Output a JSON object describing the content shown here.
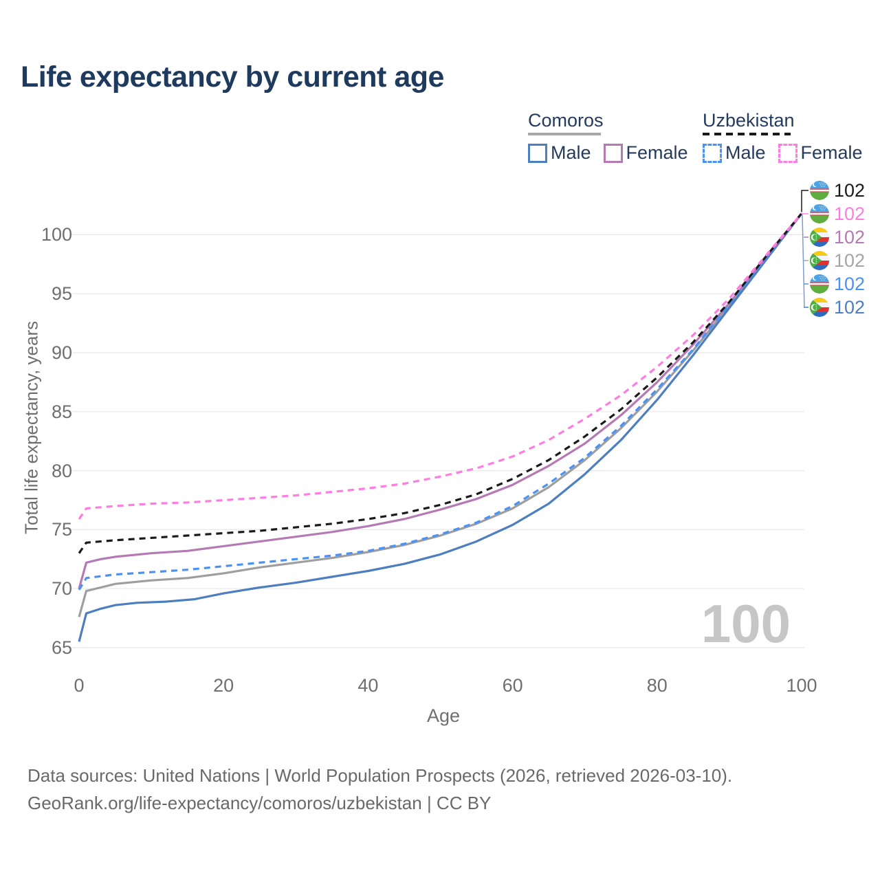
{
  "title": "Life expectancy by current age",
  "legend": {
    "groups": [
      {
        "label": "Comoros",
        "underline_style": "solid",
        "underline_color": "#a6a6a6",
        "underline_width": 106,
        "items": [
          {
            "label": "Male",
            "color": "#4d7ebf",
            "dash": false
          },
          {
            "label": "Female",
            "color": "#b579b3",
            "dash": false
          }
        ]
      },
      {
        "label": "Uzbekistan",
        "underline_style": "dashed",
        "underline_color": "#1a1a1a",
        "underline_width": 128,
        "items": [
          {
            "label": "Male",
            "color": "#4b92f5",
            "dash": true
          },
          {
            "label": "Female",
            "color": "#ff7ce1",
            "dash": true
          }
        ]
      }
    ]
  },
  "chart_data": {
    "type": "line",
    "title": "Life expectancy by current age",
    "xlabel": "Age",
    "ylabel": "Total life expectancy, years",
    "x_ticks": [
      0,
      20,
      40,
      60,
      80,
      100
    ],
    "y_ticks": [
      65,
      70,
      75,
      80,
      85,
      90,
      95,
      100
    ],
    "xlim": [
      0,
      100
    ],
    "ylim": [
      64,
      103
    ],
    "grid": "horizontal-only",
    "gridline_color": "#e8e8e8",
    "series": [
      {
        "name": "Comoros Both sexes",
        "country": "comoros",
        "sex": "both",
        "color": "#9e9e9e",
        "dash": false,
        "points": [
          [
            0,
            67.6
          ],
          [
            1,
            69.8
          ],
          [
            3,
            70.1
          ],
          [
            5,
            70.4
          ],
          [
            10,
            70.7
          ],
          [
            15,
            70.9
          ],
          [
            20,
            71.3
          ],
          [
            25,
            71.8
          ],
          [
            30,
            72.2
          ],
          [
            35,
            72.6
          ],
          [
            40,
            73.1
          ],
          [
            45,
            73.7
          ],
          [
            50,
            74.5
          ],
          [
            55,
            75.5
          ],
          [
            60,
            76.8
          ],
          [
            65,
            78.6
          ],
          [
            70,
            80.9
          ],
          [
            75,
            83.6
          ],
          [
            80,
            86.7
          ],
          [
            85,
            90.2
          ],
          [
            90,
            94.0
          ],
          [
            95,
            97.9
          ],
          [
            100,
            101.8
          ]
        ]
      },
      {
        "name": "Comoros Male",
        "country": "comoros",
        "sex": "male",
        "color": "#4d7ebf",
        "dash": false,
        "points": [
          [
            0,
            65.5
          ],
          [
            1,
            67.9
          ],
          [
            3,
            68.3
          ],
          [
            5,
            68.6
          ],
          [
            8,
            68.8
          ],
          [
            12,
            68.9
          ],
          [
            16,
            69.1
          ],
          [
            20,
            69.6
          ],
          [
            25,
            70.1
          ],
          [
            30,
            70.5
          ],
          [
            35,
            71.0
          ],
          [
            40,
            71.5
          ],
          [
            45,
            72.1
          ],
          [
            50,
            72.9
          ],
          [
            55,
            74.0
          ],
          [
            60,
            75.4
          ],
          [
            65,
            77.2
          ],
          [
            70,
            79.7
          ],
          [
            75,
            82.6
          ],
          [
            80,
            86.0
          ],
          [
            85,
            89.8
          ],
          [
            90,
            93.8
          ],
          [
            95,
            97.8
          ],
          [
            100,
            101.8
          ]
        ]
      },
      {
        "name": "Comoros Female",
        "country": "comoros",
        "sex": "female",
        "color": "#b579b3",
        "dash": false,
        "points": [
          [
            0,
            70.0
          ],
          [
            1,
            72.2
          ],
          [
            3,
            72.5
          ],
          [
            5,
            72.7
          ],
          [
            10,
            73.0
          ],
          [
            15,
            73.2
          ],
          [
            20,
            73.6
          ],
          [
            25,
            74.0
          ],
          [
            30,
            74.4
          ],
          [
            35,
            74.8
          ],
          [
            40,
            75.3
          ],
          [
            45,
            75.9
          ],
          [
            50,
            76.7
          ],
          [
            55,
            77.6
          ],
          [
            60,
            78.8
          ],
          [
            65,
            80.4
          ],
          [
            70,
            82.3
          ],
          [
            75,
            84.7
          ],
          [
            80,
            87.5
          ],
          [
            85,
            90.7
          ],
          [
            90,
            94.2
          ],
          [
            95,
            98.0
          ],
          [
            100,
            101.8
          ]
        ]
      },
      {
        "name": "Uzbekistan Male",
        "country": "uzbekistan",
        "sex": "male",
        "color": "#4b92f5",
        "dash": true,
        "points": [
          [
            0,
            69.9
          ],
          [
            1,
            70.9
          ],
          [
            5,
            71.2
          ],
          [
            10,
            71.4
          ],
          [
            15,
            71.6
          ],
          [
            20,
            71.9
          ],
          [
            25,
            72.2
          ],
          [
            30,
            72.5
          ],
          [
            35,
            72.8
          ],
          [
            40,
            73.2
          ],
          [
            45,
            73.8
          ],
          [
            50,
            74.6
          ],
          [
            55,
            75.6
          ],
          [
            60,
            77.0
          ],
          [
            65,
            78.9
          ],
          [
            70,
            81.1
          ],
          [
            75,
            83.8
          ],
          [
            80,
            86.9
          ],
          [
            85,
            90.3
          ],
          [
            90,
            94.1
          ],
          [
            95,
            98.0
          ],
          [
            100,
            101.8
          ]
        ]
      },
      {
        "name": "Uzbekistan Both sexes",
        "country": "uzbekistan",
        "sex": "both",
        "color": "#1a1a1a",
        "dash": true,
        "points": [
          [
            0,
            73.0
          ],
          [
            1,
            73.9
          ],
          [
            5,
            74.1
          ],
          [
            10,
            74.3
          ],
          [
            15,
            74.5
          ],
          [
            20,
            74.7
          ],
          [
            25,
            74.9
          ],
          [
            30,
            75.2
          ],
          [
            35,
            75.5
          ],
          [
            40,
            75.9
          ],
          [
            45,
            76.4
          ],
          [
            50,
            77.1
          ],
          [
            55,
            78.0
          ],
          [
            60,
            79.3
          ],
          [
            65,
            80.9
          ],
          [
            70,
            82.9
          ],
          [
            75,
            85.2
          ],
          [
            80,
            87.9
          ],
          [
            85,
            90.9
          ],
          [
            90,
            94.3
          ],
          [
            95,
            98.1
          ],
          [
            100,
            101.8
          ]
        ]
      },
      {
        "name": "Uzbekistan Female",
        "country": "uzbekistan",
        "sex": "female",
        "color": "#ff7ce1",
        "dash": true,
        "points": [
          [
            0,
            75.9
          ],
          [
            1,
            76.8
          ],
          [
            5,
            77.0
          ],
          [
            10,
            77.2
          ],
          [
            15,
            77.3
          ],
          [
            20,
            77.5
          ],
          [
            25,
            77.7
          ],
          [
            30,
            77.9
          ],
          [
            35,
            78.2
          ],
          [
            40,
            78.5
          ],
          [
            45,
            78.9
          ],
          [
            50,
            79.5
          ],
          [
            55,
            80.2
          ],
          [
            60,
            81.2
          ],
          [
            65,
            82.6
          ],
          [
            70,
            84.4
          ],
          [
            75,
            86.4
          ],
          [
            80,
            88.8
          ],
          [
            85,
            91.5
          ],
          [
            90,
            94.6
          ],
          [
            95,
            98.2
          ],
          [
            100,
            101.8
          ]
        ]
      }
    ]
  },
  "end_labels": [
    {
      "country": "uzbekistan",
      "value": "102",
      "color": "#1a1a1a"
    },
    {
      "country": "uzbekistan",
      "value": "102",
      "color": "#ff7ce1"
    },
    {
      "country": "comoros",
      "value": "102",
      "color": "#b579b3"
    },
    {
      "country": "comoros",
      "value": "102",
      "color": "#a5a5a5"
    },
    {
      "country": "uzbekistan",
      "value": "102",
      "color": "#4b92f5"
    },
    {
      "country": "comoros",
      "value": "102",
      "color": "#4d7ebf"
    }
  ],
  "watermark": "100",
  "footer": {
    "line1": "Data sources: United Nations | World Population Prospects (2026, retrieved 2026-03-10).",
    "line2": "GeoRank.org/life-expectancy/comoros/uzbekistan | CC BY"
  }
}
